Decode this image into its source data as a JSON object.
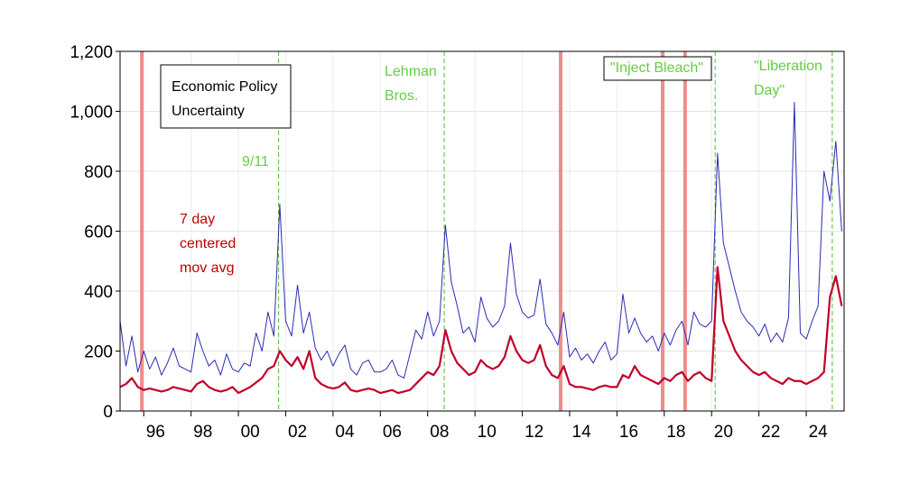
{
  "chart_data": {
    "type": "line",
    "x": [
      1995,
      1995.25,
      1995.5,
      1995.75,
      1996,
      1996.25,
      1996.5,
      1996.75,
      1997,
      1997.25,
      1997.5,
      1997.75,
      1998,
      1998.25,
      1998.5,
      1998.75,
      1999,
      1999.25,
      1999.5,
      1999.75,
      2000,
      2000.25,
      2000.5,
      2000.75,
      2001,
      2001.25,
      2001.5,
      2001.75,
      2002,
      2002.25,
      2002.5,
      2002.75,
      2003,
      2003.25,
      2003.5,
      2003.75,
      2004,
      2004.25,
      2004.5,
      2004.75,
      2005,
      2005.25,
      2005.5,
      2005.75,
      2006,
      2006.25,
      2006.5,
      2006.75,
      2007,
      2007.25,
      2007.5,
      2007.75,
      2008,
      2008.25,
      2008.5,
      2008.75,
      2009,
      2009.25,
      2009.5,
      2009.75,
      2010,
      2010.25,
      2010.5,
      2010.75,
      2011,
      2011.25,
      2011.5,
      2011.75,
      2012,
      2012.25,
      2012.5,
      2012.75,
      2013,
      2013.25,
      2013.5,
      2013.75,
      2014,
      2014.25,
      2014.5,
      2014.75,
      2015,
      2015.25,
      2015.5,
      2015.75,
      2016,
      2016.25,
      2016.5,
      2016.75,
      2017,
      2017.25,
      2017.5,
      2017.75,
      2018,
      2018.25,
      2018.5,
      2018.75,
      2019,
      2019.25,
      2019.5,
      2019.75,
      2020,
      2020.25,
      2020.5,
      2020.75,
      2021,
      2021.25,
      2021.5,
      2021.75,
      2022,
      2022.25,
      2022.5,
      2022.75,
      2023,
      2023.25,
      2023.5,
      2023.75,
      2024,
      2024.25,
      2024.5,
      2024.75,
      2025,
      2025.25,
      2025.5
    ],
    "series": [
      {
        "color": "#2b2bb5",
        "values": [
          300,
          150,
          250,
          130,
          200,
          140,
          180,
          120,
          160,
          210,
          150,
          140,
          130,
          260,
          200,
          150,
          170,
          120,
          190,
          140,
          130,
          160,
          150,
          260,
          200,
          330,
          250,
          690,
          300,
          250,
          420,
          260,
          330,
          210,
          170,
          200,
          150,
          190,
          220,
          140,
          120,
          160,
          170,
          130,
          130,
          140,
          170,
          120,
          110,
          190,
          270,
          240,
          330,
          250,
          300,
          620,
          430,
          350,
          260,
          280,
          230,
          380,
          310,
          280,
          300,
          350,
          560,
          390,
          330,
          310,
          320,
          440,
          290,
          260,
          220,
          330,
          180,
          210,
          170,
          190,
          160,
          200,
          230,
          170,
          190,
          390,
          260,
          310,
          260,
          230,
          250,
          200,
          260,
          220,
          270,
          300,
          220,
          330,
          290,
          280,
          300,
          860,
          560,
          480,
          400,
          330,
          300,
          280,
          250,
          290,
          230,
          260,
          230,
          310,
          1030,
          260,
          240,
          300,
          350,
          800,
          700,
          900,
          600
        ]
      },
      {
        "color": "#c0002a",
        "values": [
          80,
          90,
          110,
          80,
          70,
          75,
          70,
          65,
          70,
          80,
          75,
          70,
          65,
          90,
          100,
          80,
          70,
          65,
          70,
          80,
          60,
          70,
          80,
          95,
          110,
          140,
          150,
          200,
          170,
          150,
          180,
          140,
          200,
          110,
          90,
          80,
          75,
          80,
          95,
          70,
          65,
          70,
          75,
          70,
          60,
          65,
          70,
          60,
          65,
          70,
          90,
          110,
          130,
          120,
          150,
          270,
          200,
          160,
          140,
          120,
          130,
          170,
          150,
          140,
          150,
          180,
          250,
          200,
          170,
          160,
          170,
          220,
          150,
          120,
          110,
          150,
          90,
          80,
          80,
          75,
          70,
          80,
          85,
          80,
          80,
          120,
          110,
          150,
          120,
          110,
          100,
          90,
          110,
          100,
          120,
          130,
          100,
          120,
          130,
          110,
          100,
          480,
          300,
          250,
          200,
          170,
          150,
          130,
          120,
          130,
          110,
          100,
          90,
          110,
          100,
          100,
          90,
          100,
          110,
          130,
          380,
          450,
          350
        ]
      }
    ],
    "xlim": [
      1995,
      2025.6
    ],
    "xticks": [
      {
        "value": 1996,
        "label": "96"
      },
      {
        "value": 1998,
        "label": "98"
      },
      {
        "value": 2000,
        "label": "00"
      },
      {
        "value": 2002,
        "label": "02"
      },
      {
        "value": 2004,
        "label": "04"
      },
      {
        "value": 2006,
        "label": "06"
      },
      {
        "value": 2008,
        "label": "08"
      },
      {
        "value": 2010,
        "label": "10"
      },
      {
        "value": 2012,
        "label": "12"
      },
      {
        "value": 2014,
        "label": "14"
      },
      {
        "value": 2016,
        "label": "16"
      },
      {
        "value": 2018,
        "label": "18"
      },
      {
        "value": 2020,
        "label": "20"
      },
      {
        "value": 2022,
        "label": "22"
      },
      {
        "value": 2024,
        "label": "24"
      }
    ],
    "ylim": [
      0,
      1200
    ],
    "yticks": [
      0,
      200,
      400,
      600,
      800,
      {
        "value": 1000,
        "label": "1,000"
      },
      {
        "value": 1200,
        "label": "1,200"
      }
    ],
    "grid": true,
    "shutdowns": {
      "color": "#f08080",
      "x": [
        1995.92,
        2013.62,
        2017.93,
        2018.88
      ]
    },
    "events": {
      "color": "#55bb33",
      "x": [
        2001.7,
        2008.7,
        2020.15,
        2025.1
      ]
    },
    "annotations": [
      {
        "text": [
          "Economic Policy",
          "Uncertainty"
        ],
        "color": "#000000"
      },
      {
        "text": [
          "9/11"
        ],
        "color": "#66cc44"
      },
      {
        "text": [
          "Lehman",
          "Bros."
        ],
        "color": "#66cc44"
      },
      {
        "text": [
          "\"Inject Bleach\""
        ],
        "color": "#66cc44"
      },
      {
        "text": [
          "\"Liberation",
          "Day\""
        ],
        "color": "#66cc44"
      },
      {
        "text": [
          "7 day",
          "centered",
          "mov avg"
        ],
        "color": "#c00000"
      }
    ]
  }
}
